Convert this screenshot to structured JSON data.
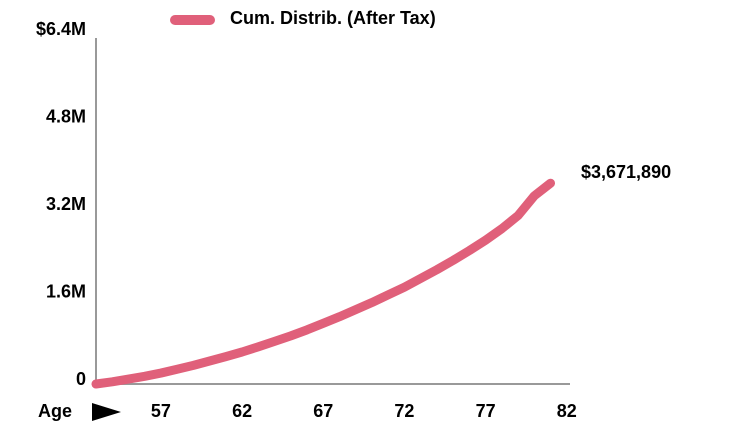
{
  "chart_data": {
    "type": "line",
    "x_label": "Age",
    "x": [
      53,
      54,
      55,
      56,
      57,
      58,
      59,
      60,
      61,
      62,
      63,
      64,
      65,
      66,
      67,
      68,
      69,
      70,
      71,
      72,
      73,
      74,
      75,
      76,
      77,
      78,
      79,
      80,
      81
    ],
    "series": [
      {
        "name": "Cum. Distrib. (After Tax)",
        "color": "#e0607a",
        "values": [
          0,
          40000,
          90000,
          140000,
          200000,
          270000,
          340000,
          420000,
          500000,
          585000,
          680000,
          780000,
          880000,
          990000,
          1110000,
          1230000,
          1360000,
          1490000,
          1630000,
          1770000,
          1930000,
          2090000,
          2260000,
          2440000,
          2630000,
          2840000,
          3080000,
          3440000,
          3671890
        ],
        "end_label": "$3,671,890"
      }
    ],
    "xlim": [
      53,
      82.2
    ],
    "xticks": [
      57,
      62,
      67,
      72,
      77,
      82
    ],
    "ylim": [
      0,
      6400000
    ],
    "yticks": [
      0,
      {
        "value": 1600000,
        "label": "1.6M"
      },
      {
        "value": 3200000,
        "label": "3.2M"
      },
      {
        "value": 4800000,
        "label": "4.8M"
      },
      {
        "value": 6400000,
        "label": "$6.4M"
      }
    ]
  }
}
